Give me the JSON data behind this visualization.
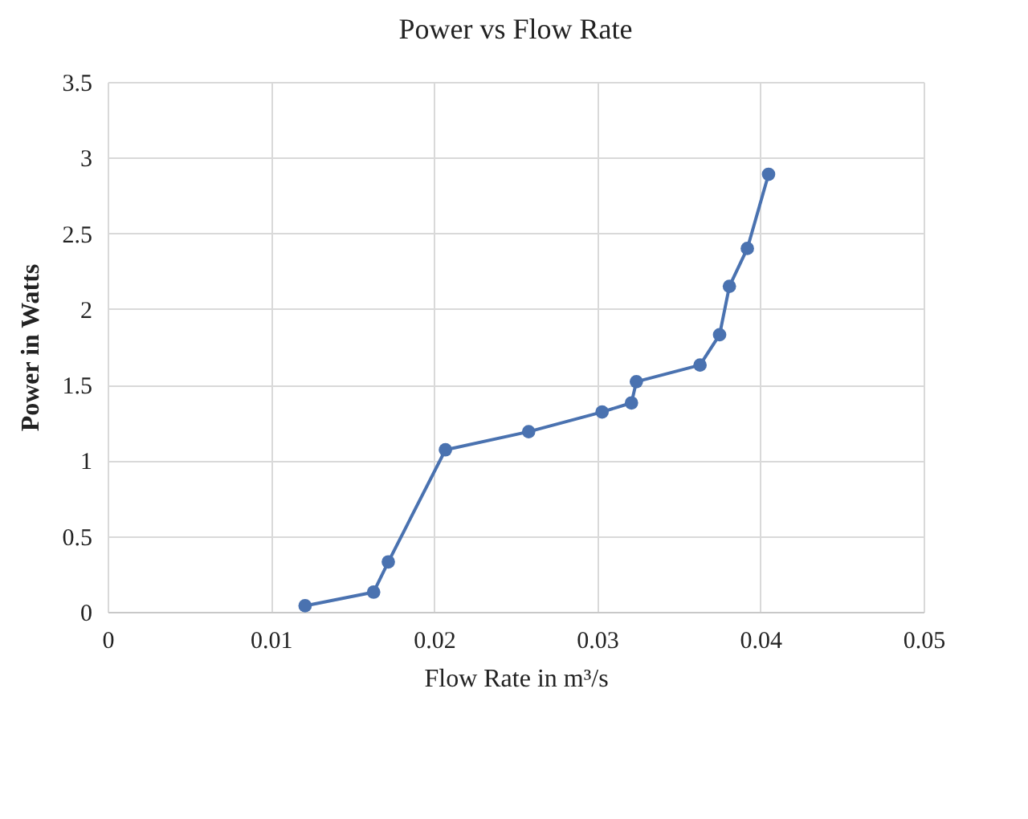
{
  "chart_data": {
    "type": "line",
    "title": "Power vs Flow Rate",
    "xlabel": "Flow Rate in m³/s",
    "ylabel": "Power in Watts",
    "x": [
      0.0121,
      0.0163,
      0.0172,
      0.0207,
      0.0258,
      0.0303,
      0.0321,
      0.0324,
      0.0363,
      0.0375,
      0.0381,
      0.0392,
      0.0405
    ],
    "series": [
      {
        "color": "#4a72b0",
        "values": [
          0.04,
          0.13,
          0.33,
          1.07,
          1.19,
          1.32,
          1.38,
          1.52,
          1.63,
          1.83,
          2.15,
          2.4,
          2.89
        ]
      }
    ],
    "xlim": [
      0,
      0.05
    ],
    "xticks": [
      0,
      0.01,
      0.02,
      0.03,
      0.04,
      0.05
    ],
    "ylim": [
      0,
      3.5
    ],
    "yticks": [
      0,
      0.5,
      1,
      1.5,
      2,
      2.5,
      3,
      3.5
    ],
    "grid": true,
    "marker": "circle",
    "line_style": "solid"
  }
}
